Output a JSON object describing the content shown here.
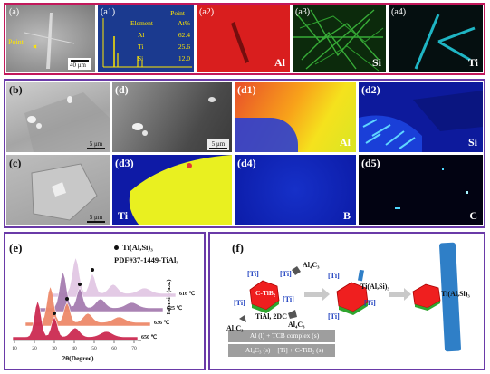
{
  "row_a": {
    "a": {
      "label": "(a)",
      "point_label": "Point",
      "scale": "40 μm"
    },
    "a1": {
      "label": "(a1)",
      "title": "Point",
      "col_element": "Element",
      "col_at": "At%",
      "rows": [
        {
          "element": "Al",
          "at": "62.4"
        },
        {
          "element": "Ti",
          "at": "25.6"
        },
        {
          "element": "Si",
          "at": "12.0"
        }
      ]
    },
    "a2": {
      "label": "(a2)",
      "element": "Al"
    },
    "a3": {
      "label": "(a3)",
      "element": "Si"
    },
    "a4": {
      "label": "(a4)",
      "element": "Ti"
    }
  },
  "row_bd": {
    "b": {
      "label": "(b)",
      "scale": "5 μm"
    },
    "c": {
      "label": "(c)",
      "scale": "5 μm"
    },
    "d": {
      "label": "(d)",
      "scale": "5 μm"
    },
    "d1": {
      "label": "(d1)",
      "element": "Al"
    },
    "d2": {
      "label": "(d2)",
      "element": "Si"
    },
    "d3": {
      "label": "(d3)",
      "element": "Ti"
    },
    "d4": {
      "label": "(d4)",
      "element": "B"
    },
    "d5": {
      "label": "(d5)",
      "element": "C"
    }
  },
  "panel_e": {
    "label": "(e)",
    "legend_phase": "Ti(Al,Si)₃",
    "legend_pdf": "PDF#37-1449-TiAl₃",
    "ylabel": "Intensity(a.u.)",
    "xlabel": "2θ(Degree)",
    "ticks": [
      "10",
      "20",
      "30",
      "40",
      "50",
      "60",
      "70"
    ],
    "temps": [
      "616 ℃",
      "625 ℃",
      "636 ℃",
      "650 ℃"
    ],
    "colors": [
      "#e2c8e4",
      "#a67db0",
      "#ee8a6a",
      "#cc2b52"
    ]
  },
  "panel_f": {
    "label": "(f)",
    "ti_tag": "[Ti]",
    "al4c3": "Al₄C₃",
    "c_tib2": "C-TiB₂",
    "tial_2dc": "TiAl, 2DC",
    "ti_al_si_3": "Ti(Al,Si)₃",
    "ti_al_si_3_b": "Ti(Al,Si)₃",
    "eq1": "Al (l) + TCB complex (s)",
    "eq2": "Al₄C₃ (s) + [Ti] + C-TiB₂ (s)"
  }
}
